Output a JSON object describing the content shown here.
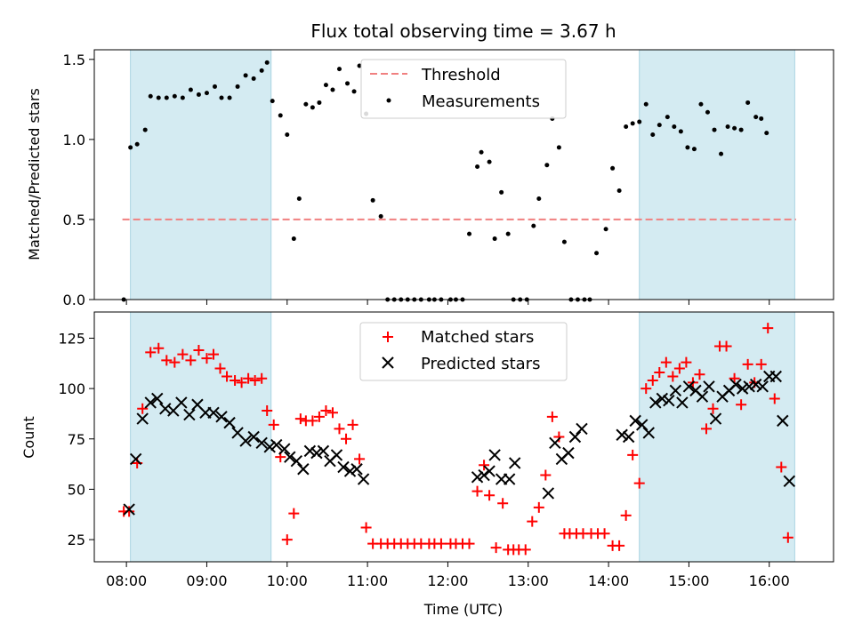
{
  "chart_data": [
    {
      "type": "scatter",
      "title": "Flux total observing time = 3.67 h",
      "xlabel": "",
      "ylabel": "Matched/Predicted stars",
      "xlim": [
        "07:36",
        "16:48"
      ],
      "ylim": [
        0,
        1.56
      ],
      "yticks": [
        0.0,
        0.5,
        1.0,
        1.5
      ],
      "ytick_labels": [
        "0.0",
        "0.5",
        "1.0",
        "1.5"
      ],
      "shaded_intervals": [
        [
          "08:03",
          "09:48"
        ],
        [
          "14:23",
          "16:19"
        ]
      ],
      "shade_color": "#d4ebf2",
      "threshold": {
        "name": "Threshold",
        "value": 0.5,
        "x_range": [
          "07:57",
          "16:20"
        ],
        "color": "#f08080"
      },
      "legend": [
        "Threshold",
        "Measurements"
      ],
      "series": [
        {
          "name": "Measurements",
          "color": "#000000",
          "x": [
            "07:58",
            "08:03",
            "08:08",
            "08:14",
            "08:18",
            "08:24",
            "08:30",
            "08:36",
            "08:42",
            "08:48",
            "08:54",
            "09:00",
            "09:06",
            "09:11",
            "09:17",
            "09:23",
            "09:29",
            "09:35",
            "09:41",
            "09:45",
            "09:49",
            "09:55",
            "10:00",
            "10:05",
            "10:09",
            "10:14",
            "10:19",
            "10:24",
            "10:29",
            "10:34",
            "10:39",
            "10:45",
            "10:50",
            "10:54",
            "10:59",
            "11:04",
            "11:10",
            "11:15",
            "11:20",
            "11:25",
            "11:30",
            "11:35",
            "11:40",
            "11:46",
            "11:50",
            "11:55",
            "12:02",
            "12:06",
            "12:11",
            "12:16",
            "12:22",
            "12:25",
            "12:31",
            "12:35",
            "12:40",
            "12:45",
            "12:49",
            "12:54",
            "12:59",
            "13:04",
            "13:08",
            "13:14",
            "13:18",
            "13:23",
            "13:27",
            "13:32",
            "13:37",
            "13:42",
            "13:46",
            "13:51",
            "13:58",
            "14:03",
            "14:08",
            "14:13",
            "14:18",
            "14:23",
            "14:28",
            "14:33",
            "14:38",
            "14:44",
            "14:49",
            "14:54",
            "14:59",
            "15:04",
            "15:09",
            "15:14",
            "15:19",
            "15:24",
            "15:29",
            "15:34",
            "15:39",
            "15:44",
            "15:50",
            "15:54",
            "15:58",
            "16:02",
            "16:07",
            "16:11",
            "16:14"
          ],
          "y": [
            0.0,
            0.95,
            0.97,
            1.06,
            1.27,
            1.26,
            1.26,
            1.27,
            1.26,
            1.31,
            1.28,
            1.29,
            1.33,
            1.26,
            1.26,
            1.33,
            1.4,
            1.38,
            1.43,
            1.48,
            1.24,
            1.15,
            1.03,
            0.38,
            0.63,
            1.22,
            1.2,
            1.23,
            1.34,
            1.31,
            1.44,
            1.35,
            1.3,
            1.46,
            1.16,
            0.62,
            0.52,
            0.0,
            0.0,
            0.0,
            0.0,
            0.0,
            0.0,
            0.0,
            0.0,
            0.0,
            0.0,
            0.0,
            0.0,
            0.41,
            0.83,
            0.92,
            0.86,
            0.38,
            0.67,
            0.41,
            0.0,
            0.0,
            0.0,
            0.46,
            0.63,
            0.84,
            1.13,
            0.95,
            0.36,
            0.0,
            0.0,
            0.0,
            0.0,
            0.29,
            0.44,
            0.82,
            0.68,
            1.08,
            1.1,
            1.11,
            1.22,
            1.03,
            1.09,
            1.14,
            1.08,
            1.05,
            0.95,
            0.94,
            1.22,
            1.17,
            1.06,
            0.91,
            1.08,
            1.07,
            1.06,
            1.23,
            1.14,
            1.13,
            1.04,
            null,
            null,
            null,
            null
          ]
        }
      ]
    },
    {
      "type": "scatter",
      "title": "",
      "xlabel": "Time (UTC)",
      "ylabel": "Count",
      "xlim": [
        "07:36",
        "16:48"
      ],
      "ylim": [
        14,
        138
      ],
      "yticks": [
        25,
        50,
        75,
        100,
        125
      ],
      "ytick_labels": [
        "25",
        "50",
        "75",
        "100",
        "125"
      ],
      "xticks": [
        "08:00",
        "09:00",
        "10:00",
        "11:00",
        "12:00",
        "13:00",
        "14:00",
        "15:00",
        "16:00"
      ],
      "xtick_labels": [
        "08:00",
        "09:00",
        "10:00",
        "11:00",
        "12:00",
        "13:00",
        "14:00",
        "15:00",
        "16:00"
      ],
      "shaded_intervals": [
        [
          "08:03",
          "09:48"
        ],
        [
          "14:23",
          "16:19"
        ]
      ],
      "shade_color": "#d4ebf2",
      "legend": [
        "Matched stars",
        "Predicted stars"
      ],
      "series": [
        {
          "name": "Matched stars",
          "color": "#ff0000",
          "marker": "plus",
          "x": [
            "07:58",
            "08:02",
            "08:08",
            "08:12",
            "08:18",
            "08:24",
            "08:30",
            "08:36",
            "08:42",
            "08:48",
            "08:54",
            "09:00",
            "09:05",
            "09:10",
            "09:15",
            "09:21",
            "09:26",
            "09:31",
            "09:36",
            "09:41",
            "09:45",
            "09:50",
            "09:55",
            "10:00",
            "10:05",
            "10:10",
            "10:14",
            "10:19",
            "10:24",
            "10:29",
            "10:34",
            "10:39",
            "10:44",
            "10:49",
            "10:54",
            "10:59",
            "11:04",
            "11:10",
            "11:15",
            "11:20",
            "11:25",
            "11:30",
            "11:35",
            "11:40",
            "11:46",
            "11:50",
            "11:55",
            "12:02",
            "12:06",
            "12:11",
            "12:16",
            "12:22",
            "12:27",
            "12:31",
            "12:36",
            "12:41",
            "12:45",
            "12:49",
            "12:53",
            "12:58",
            "13:03",
            "13:08",
            "13:13",
            "13:18",
            "13:23",
            "13:27",
            "13:31",
            "13:36",
            "13:41",
            "13:47",
            "13:52",
            "13:57",
            "14:03",
            "14:08",
            "14:13",
            "14:18",
            "14:23",
            "14:28",
            "14:33",
            "14:38",
            "14:43",
            "14:48",
            "14:53",
            "14:58",
            "15:03",
            "15:08",
            "15:13",
            "15:18",
            "15:23",
            "15:28",
            "15:34",
            "15:39",
            "15:44",
            "15:49",
            "15:54",
            "15:59",
            "16:04",
            "16:09",
            "16:14"
          ],
          "y": [
            39,
            39,
            63,
            90,
            118,
            120,
            114,
            113,
            117,
            114,
            119,
            115,
            117,
            110,
            106,
            104,
            103,
            105,
            104,
            105,
            89,
            82,
            66,
            25,
            38,
            85,
            84,
            84,
            86,
            89,
            88,
            80,
            75,
            82,
            65,
            31,
            23,
            23,
            23,
            23,
            23,
            23,
            23,
            23,
            23,
            23,
            23,
            23,
            23,
            23,
            23,
            49,
            62,
            47,
            21,
            43,
            20,
            20,
            20,
            20,
            34,
            41,
            57,
            86,
            76,
            28,
            28,
            28,
            28,
            28,
            28,
            28,
            22,
            22,
            37,
            67,
            53,
            100,
            104,
            108,
            113,
            106,
            110,
            113,
            103,
            107,
            80,
            90,
            121,
            121,
            105,
            92,
            112,
            103,
            112,
            130,
            95,
            61,
            26
          ]
        },
        {
          "name": "Predicted stars",
          "color": "#000000",
          "marker": "x",
          "x": [
            "08:02",
            "08:07",
            "08:12",
            "08:18",
            "08:23",
            "08:29",
            "08:35",
            "08:41",
            "08:47",
            "08:53",
            "08:59",
            "09:05",
            "09:11",
            "09:17",
            "09:23",
            "09:29",
            "09:35",
            "09:41",
            "09:47",
            "09:52",
            "09:58",
            "10:02",
            "10:07",
            "10:12",
            "10:17",
            "10:22",
            "10:27",
            "10:32",
            "10:37",
            "10:42",
            "10:47",
            "10:52",
            "10:57",
            "12:22",
            "12:27",
            "12:31",
            "12:35",
            "12:40",
            "12:46",
            "12:50",
            "13:15",
            "13:20",
            "13:25",
            "13:30",
            "13:35",
            "13:40",
            "14:10",
            "14:15",
            "14:20",
            "14:25",
            "14:30",
            "14:35",
            "14:40",
            "14:45",
            "14:50",
            "14:55",
            "15:00",
            "15:05",
            "15:10",
            "15:15",
            "15:20",
            "15:25",
            "15:30",
            "15:35",
            "15:40",
            "15:45",
            "15:50",
            "15:55",
            "16:00",
            "16:05",
            "16:10",
            "16:15"
          ],
          "y": [
            40,
            65,
            85,
            93,
            95,
            90,
            89,
            93,
            87,
            92,
            88,
            88,
            86,
            83,
            78,
            74,
            76,
            73,
            71,
            72,
            70,
            66,
            64,
            60,
            69,
            68,
            69,
            64,
            67,
            61,
            59,
            60,
            55,
            56,
            57,
            59,
            67,
            55,
            55,
            63,
            48,
            73,
            65,
            68,
            76,
            80,
            77,
            76,
            84,
            82,
            78,
            93,
            95,
            94,
            99,
            93,
            101,
            99,
            96,
            101,
            85,
            96,
            99,
            102,
            100,
            101,
            102,
            101,
            106,
            106,
            84,
            54
          ]
        }
      ]
    }
  ]
}
